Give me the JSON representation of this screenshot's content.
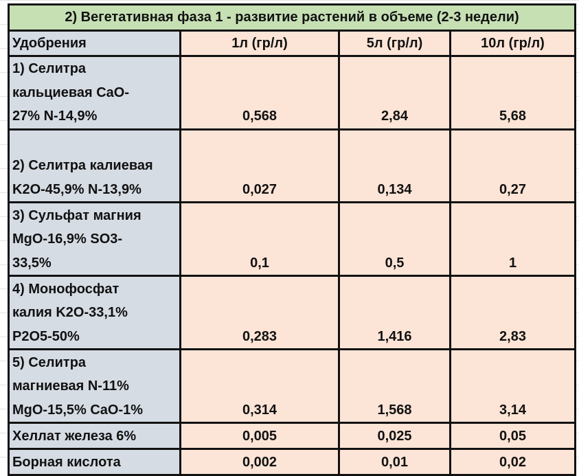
{
  "title": "2) Вегетативная фаза 1 - развитие растений в объеме (2-3 недели)",
  "headers": [
    "Удобрения",
    "1л (гр/л)",
    "5л (гр/л)",
    "10л (гр/л)"
  ],
  "rows": [
    {
      "name": "1) Селитра\nкальциевая CaO-\n27% N-14,9%",
      "values": [
        "0,568",
        "2,84",
        "5,68"
      ]
    },
    {
      "name": "\n2) Селитра калиевая\nK2O-45,9% N-13,9%",
      "values": [
        "0,027",
        "0,134",
        "0,27"
      ]
    },
    {
      "name": "3) Сульфат магния\nMgO-16,9% SO3-\n33,5%",
      "values": [
        "0,1",
        "0,5",
        "1"
      ]
    },
    {
      "name": "4) Монофосфат\nкалия K2O-33,1%\nP2O5-50%",
      "values": [
        "0,283",
        "1,416",
        "2,83"
      ]
    },
    {
      "name": "5) Селитра\nмагниевая N-11%\nMgO-15,5% CaO-1%",
      "values": [
        "0,314",
        "1,568",
        "3,14"
      ]
    },
    {
      "name": "Хеллат железа 6%",
      "values": [
        "0,005",
        "0,025",
        "0,05"
      ]
    },
    {
      "name": "Борная кислота",
      "values": [
        "0,002",
        "0,01",
        "0,02"
      ]
    }
  ],
  "colors": {
    "title_bg": "#c6e0b4",
    "label_bg": "#d6dce4",
    "value_bg": "#fce4d6"
  }
}
